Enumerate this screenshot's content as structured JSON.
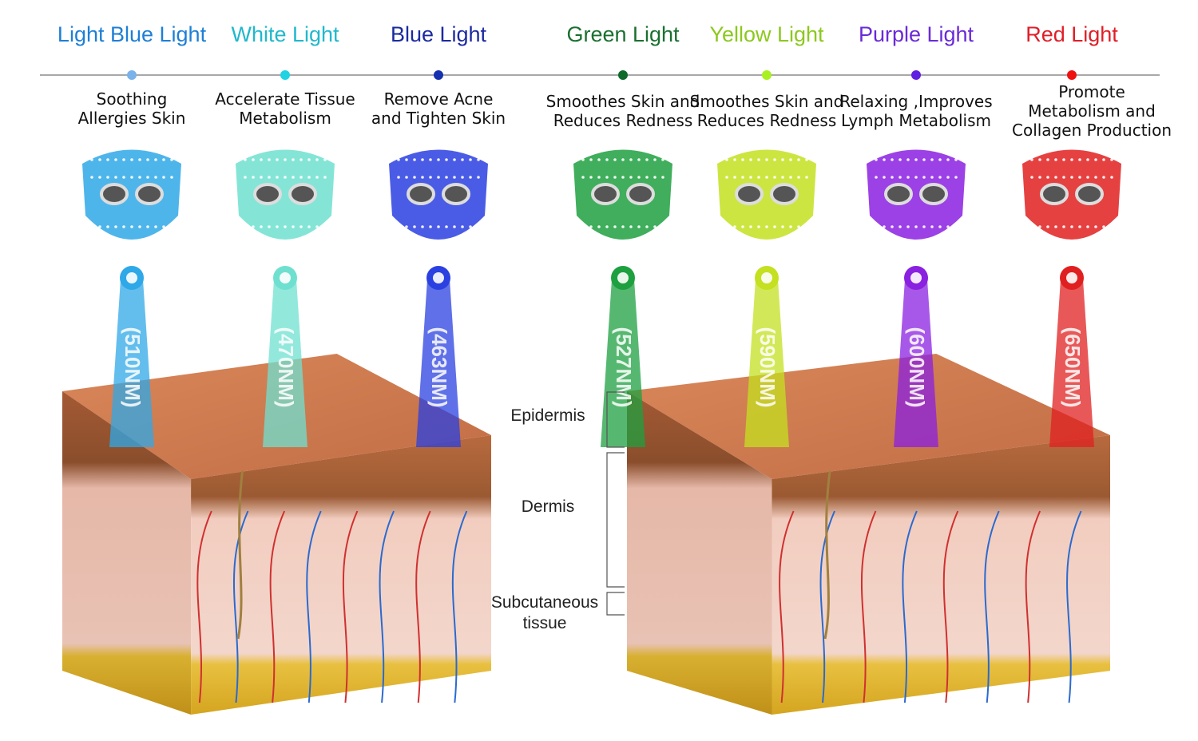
{
  "lights": [
    {
      "name": "Light Blue Light",
      "benefit": [
        "Soothing",
        "Allergies Skin"
      ],
      "wavelength": "(510NM)",
      "color": "#1e7fd6",
      "dot": "#7ab2ea",
      "beam": "#2fa8e8"
    },
    {
      "name": "White Light",
      "benefit": [
        "Accelerate Tissue",
        "Metabolism"
      ],
      "wavelength": "(470NM)",
      "color": "#20b8cc",
      "dot": "#1fd3e3",
      "beam": "#6fe0d0"
    },
    {
      "name": "Blue Light",
      "benefit": [
        "Remove Acne",
        "and Tighten Skin"
      ],
      "wavelength": "(463NM)",
      "color": "#1c2aa0",
      "dot": "#1530b0",
      "beam": "#2a40e0"
    },
    {
      "name": "Green Light",
      "benefit": [
        "Smoothes Skin and",
        "Reduces Redness"
      ],
      "wavelength": "(527NM)",
      "color": "#1a7030",
      "dot": "#0f6a2a",
      "beam": "#1ea040"
    },
    {
      "name": "Yellow Light",
      "benefit": [
        "Smoothes Skin and",
        "Reduces Redness"
      ],
      "wavelength": "(590NM)",
      "color": "#8cc81e",
      "dot": "#a8f020",
      "beam": "#c4e020"
    },
    {
      "name": "Purple Light",
      "benefit": [
        "Relaxing ,Improves",
        "Lymph Metabolism"
      ],
      "wavelength": "(600NM)",
      "color": "#6a2ad8",
      "dot": "#6020e0",
      "beam": "#8a20e0"
    },
    {
      "name": "Red Light",
      "benefit": [
        "Promote",
        "Metabolism and",
        "Collagen Production"
      ],
      "wavelength": "(650NM)",
      "color": "#e01e28",
      "dot": "#f01010",
      "beam": "#e02020"
    }
  ],
  "layers": {
    "epidermis": "Epidermis",
    "dermis": "Dermis",
    "subcutaneous": [
      "Subcutaneous",
      "tissue"
    ]
  }
}
